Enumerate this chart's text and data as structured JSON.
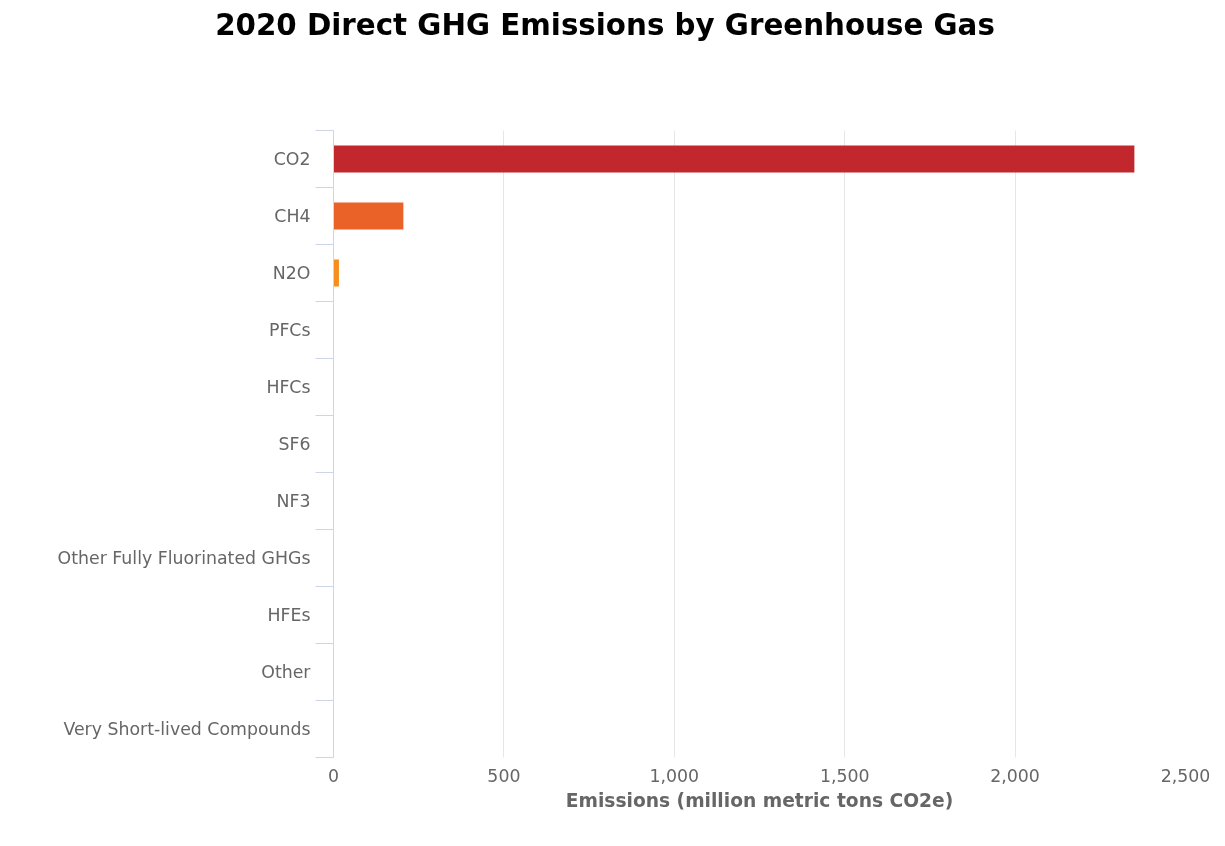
{
  "chart_data": {
    "type": "bar",
    "orientation": "horizontal",
    "title": "2020 Direct GHG Emissions by Greenhouse Gas",
    "xlabel": "Emissions (million metric tons CO2e)",
    "categories": [
      "CO2",
      "CH4",
      "N2O",
      "PFCs",
      "HFCs",
      "SF6",
      "NF3",
      "Other Fully Fluorinated GHGs",
      "HFEs",
      "Other",
      "Very Short-lived Compounds"
    ],
    "values": [
      2350,
      205,
      16,
      0,
      0,
      0,
      0,
      0,
      0,
      0,
      0
    ],
    "colors": [
      "#c1272d",
      "#eb6228",
      "#f68e1e",
      "#f6a01e",
      "#fbb040",
      "#8dc63f",
      "#39b54a",
      "#00a79d",
      "#27aae1",
      "#1c75bc",
      "#662d91"
    ],
    "xlim": [
      0,
      2500
    ],
    "xticks": [
      0,
      500,
      {
        "value": 1000,
        "label": "1,000"
      },
      {
        "value": 1500,
        "label": "1,500"
      },
      {
        "value": 2000,
        "label": "2,000"
      },
      {
        "value": 2500,
        "label": "2,500"
      }
    ],
    "grid": "x"
  }
}
